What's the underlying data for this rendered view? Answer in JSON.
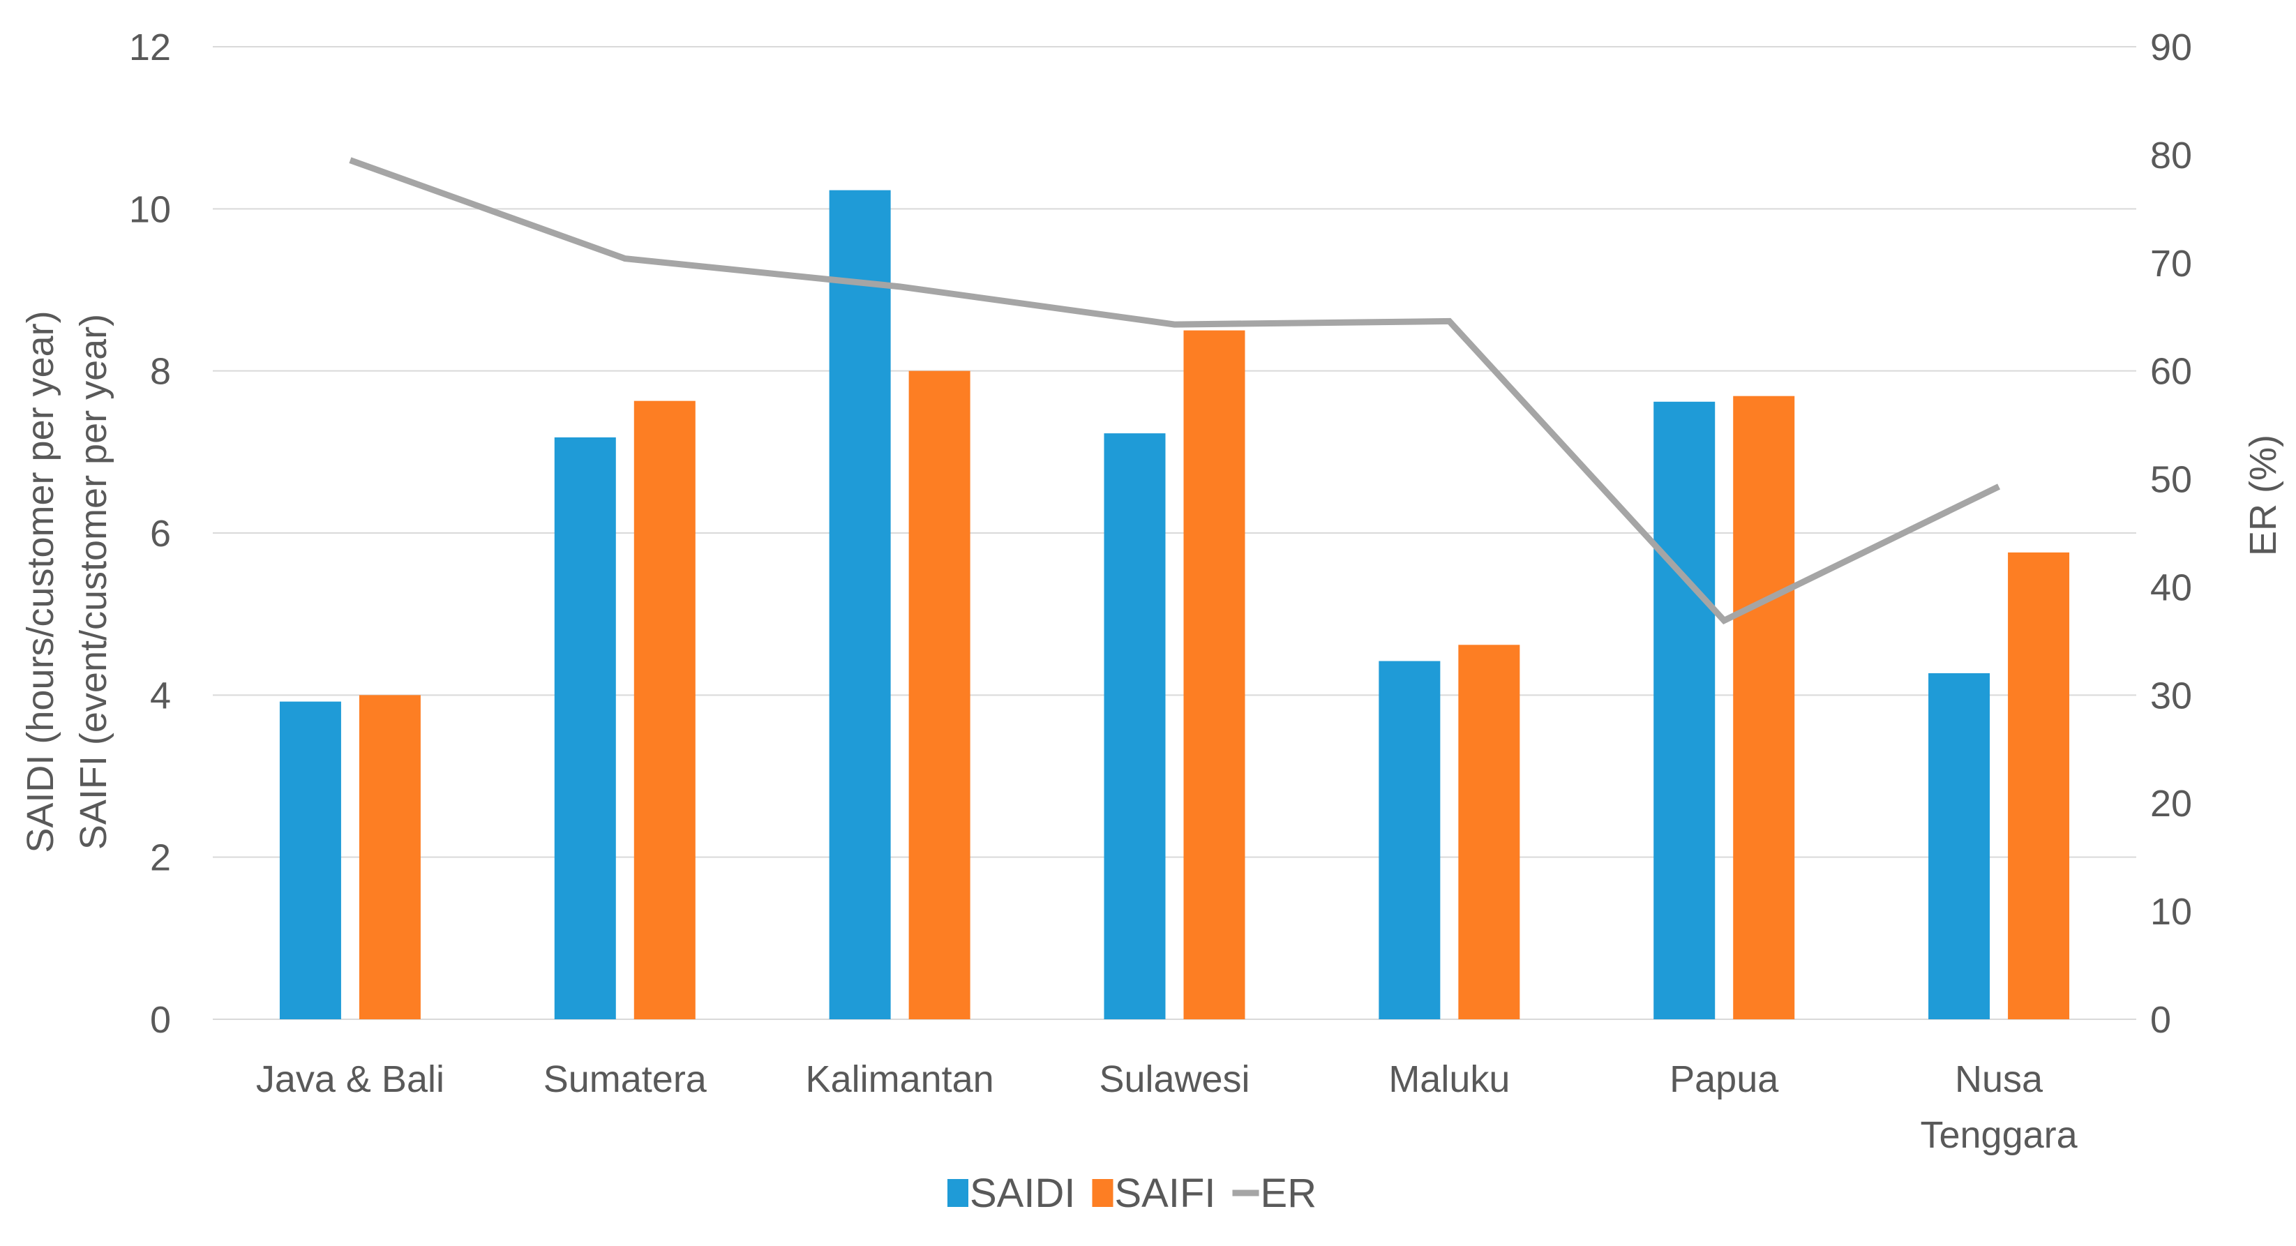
{
  "chart_data": {
    "type": "bar",
    "categories": [
      [
        "Java & Bali"
      ],
      [
        "Sumatera"
      ],
      [
        "Kalimantan"
      ],
      [
        "Sulawesi"
      ],
      [
        "Maluku"
      ],
      [
        "Papua"
      ],
      [
        "Nusa",
        "Tenggara"
      ]
    ],
    "series": [
      {
        "name": "SAIDI",
        "type": "bar",
        "axis": "left",
        "color": "#1f9bd7",
        "values": [
          3.92,
          7.18,
          10.23,
          7.23,
          4.42,
          7.62,
          4.27
        ]
      },
      {
        "name": "SAIFI",
        "type": "bar",
        "axis": "left",
        "color": "#fd7e23",
        "values": [
          4.0,
          7.63,
          8.0,
          8.5,
          4.62,
          7.69,
          5.76
        ]
      },
      {
        "name": "ER",
        "type": "line",
        "axis": "right",
        "color": "#a5a5a5",
        "values": [
          79.5,
          70.4,
          67.8,
          64.3,
          64.6,
          36.9,
          49.3
        ]
      }
    ],
    "ylabel_left": [
      "SAIDI (hours/customer per year)",
      "SAIFI (event/customer per year)"
    ],
    "ylabel_right": "ER (%)",
    "ylim_left": [
      0,
      12
    ],
    "yticks_left": [
      "0",
      "2",
      "4",
      "6",
      "8",
      "10",
      "12"
    ],
    "ylim_right": [
      0,
      90
    ],
    "yticks_right": [
      "0",
      "10",
      "20",
      "30",
      "40",
      "50",
      "60",
      "70",
      "80",
      "90"
    ],
    "grid": true,
    "legend_position": "bottom-center",
    "colors": {
      "grid": "#d9d9d9",
      "text": "#595959"
    }
  }
}
